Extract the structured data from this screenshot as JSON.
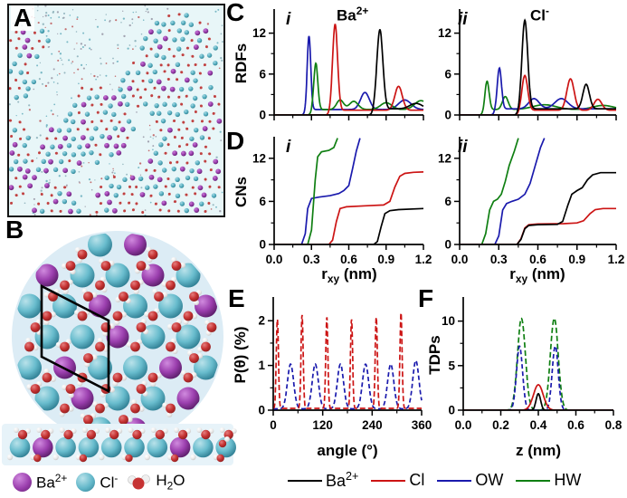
{
  "figure": {
    "panel_labels": {
      "A": "A",
      "B": "B",
      "C": "C",
      "D": "D",
      "E": "E",
      "F": "F"
    }
  },
  "colors": {
    "series_black": "#000000",
    "series_red": "#cc1414",
    "series_blue": "#1a1aad",
    "series_green": "#0f7f12",
    "ba_purple": "#9b3fae",
    "cl_teal": "#5cb4c5",
    "o_red": "#c63333",
    "h_white": "#f2f2f2",
    "panelA_bg": "#e8f6f8",
    "panelB_bg": "#dcecf5",
    "strip_bg": "#e7f3f9"
  },
  "panelB_legend": {
    "ba": {
      "base": "Ba",
      "sup": "2+"
    },
    "cl": {
      "base": "Cl",
      "sup": "-"
    },
    "water": {
      "base": "H",
      "sub": "2",
      "post": "O"
    }
  },
  "bottom_legend": {
    "items": [
      {
        "base": "Ba",
        "sup": "2+",
        "color": "black"
      },
      {
        "base": "Cl",
        "sup": "",
        "color": "red"
      },
      {
        "base": "OW",
        "sup": "",
        "color": "blue"
      },
      {
        "base": "HW",
        "sup": "",
        "color": "green"
      }
    ]
  },
  "chart_data": [
    {
      "id": "C-i",
      "panel": "C",
      "sub": "i",
      "type": "line",
      "annotation": {
        "base": "Ba",
        "sup": "2+"
      },
      "ylabel": "RDFs",
      "xlim": [
        0,
        1.2
      ],
      "ylim": [
        0,
        15
      ],
      "yticks": [
        {
          "v": 0,
          "t": "0"
        },
        {
          "v": 6,
          "t": "6"
        },
        {
          "v": 12,
          "t": "12"
        }
      ],
      "xticks": [
        {
          "v": 0.0
        },
        {
          "v": 0.3
        },
        {
          "v": 0.6
        },
        {
          "v": 0.9
        },
        {
          "v": 1.2
        }
      ],
      "series": [
        {
          "name": "OW",
          "color": "blue",
          "model": "peaks",
          "baseline": 0.8,
          "onset": 0.25,
          "peaks": [
            [
              0.28,
              10.8,
              0.014
            ],
            [
              0.73,
              2.5,
              0.035
            ],
            [
              1.05,
              1.4,
              0.05
            ]
          ]
        },
        {
          "name": "HW",
          "color": "green",
          "model": "peaks",
          "baseline": 0.8,
          "onset": 0.3,
          "peaks": [
            [
              0.335,
              6.8,
              0.016
            ],
            [
              0.53,
              1.4,
              0.028
            ],
            [
              0.64,
              1.2,
              0.035
            ],
            [
              0.9,
              1.0,
              0.045
            ],
            [
              1.18,
              1.3,
              0.05
            ]
          ]
        },
        {
          "name": "Cl",
          "color": "red",
          "model": "peaks",
          "baseline": 0.7,
          "onset": 0.45,
          "peaks": [
            [
              0.49,
              12.6,
              0.02
            ],
            [
              1.0,
              3.5,
              0.03
            ]
          ]
        },
        {
          "name": "Ba2+",
          "color": "black",
          "model": "peaks",
          "baseline": 0.9,
          "onset": 0.8,
          "peaks": [
            [
              0.85,
              11.6,
              0.024
            ],
            [
              1.14,
              0.8,
              0.05
            ]
          ]
        }
      ]
    },
    {
      "id": "C-ii",
      "panel": "C",
      "sub": "ii",
      "type": "line",
      "annotation": {
        "base": "Cl",
        "sup": "-"
      },
      "ylabel": "RDFs",
      "xlim": [
        0,
        1.2
      ],
      "ylim": [
        0,
        15
      ],
      "yticks": [
        {
          "v": 0,
          "t": "0"
        },
        {
          "v": 6,
          "t": "6"
        },
        {
          "v": 12,
          "t": "12"
        }
      ],
      "xticks": [
        {
          "v": 0.0
        },
        {
          "v": 0.3
        },
        {
          "v": 0.6
        },
        {
          "v": 0.9
        },
        {
          "v": 1.2
        }
      ],
      "series": [
        {
          "name": "HW",
          "color": "green",
          "model": "peaks",
          "baseline": 0.8,
          "onset": 0.19,
          "peaks": [
            [
              0.21,
              4.2,
              0.016
            ],
            [
              0.35,
              1.9,
              0.022
            ],
            [
              0.65,
              0.7,
              0.09
            ],
            [
              1.1,
              0.6,
              0.08
            ]
          ]
        },
        {
          "name": "OW",
          "color": "blue",
          "model": "peaks",
          "baseline": 0.9,
          "onset": 0.27,
          "peaks": [
            [
              0.305,
              6.0,
              0.016
            ],
            [
              0.57,
              1.5,
              0.04
            ],
            [
              0.78,
              1.5,
              0.05
            ]
          ]
        },
        {
          "name": "Cl",
          "color": "red",
          "model": "peaks",
          "baseline": 0.7,
          "onset": 0.46,
          "peaks": [
            [
              0.5,
              5.1,
              0.022
            ],
            [
              0.85,
              4.6,
              0.028
            ],
            [
              1.06,
              1.6,
              0.03
            ]
          ]
        },
        {
          "name": "Ba2+",
          "color": "black",
          "model": "peaks",
          "baseline": 0.9,
          "onset": 0.46,
          "peaks": [
            [
              0.5,
              13.0,
              0.022
            ],
            [
              0.97,
              3.6,
              0.025
            ]
          ]
        }
      ]
    },
    {
      "id": "D-i",
      "panel": "D",
      "sub": "i",
      "type": "line",
      "ylabel": "CNs",
      "xlabel": {
        "pre": "r",
        "sub": "xy",
        "post": " (nm)"
      },
      "xlim": [
        0,
        1.2
      ],
      "ylim": [
        0,
        14.5
      ],
      "yticks": [
        {
          "v": 0,
          "t": "0"
        },
        {
          "v": 6,
          "t": "6"
        },
        {
          "v": 12,
          "t": "12"
        }
      ],
      "xticks": [
        {
          "v": 0.0,
          "t": "0.0"
        },
        {
          "v": 0.3,
          "t": "0.3"
        },
        {
          "v": 0.6,
          "t": "0.6"
        },
        {
          "v": 0.9,
          "t": "0.9"
        },
        {
          "v": 1.2,
          "t": "1.2"
        }
      ],
      "series": [
        {
          "name": "OW",
          "color": "blue",
          "model": "points",
          "points": [
            [
              0,
              0
            ],
            [
              0.22,
              0
            ],
            [
              0.25,
              1.5
            ],
            [
              0.27,
              5.0
            ],
            [
              0.3,
              6.4
            ],
            [
              0.36,
              6.6
            ],
            [
              0.45,
              6.8
            ],
            [
              0.52,
              7.1
            ],
            [
              0.56,
              7.5
            ],
            [
              0.6,
              8.2
            ],
            [
              0.63,
              10.5
            ],
            [
              0.66,
              13.0
            ],
            [
              0.69,
              14.8
            ]
          ]
        },
        {
          "name": "HW",
          "color": "green",
          "model": "points",
          "points": [
            [
              0,
              0
            ],
            [
              0.27,
              0
            ],
            [
              0.3,
              2.0
            ],
            [
              0.33,
              9.0
            ],
            [
              0.35,
              12.2
            ],
            [
              0.38,
              12.9
            ],
            [
              0.44,
              13.1
            ],
            [
              0.48,
              13.5
            ],
            [
              0.51,
              14.8
            ]
          ]
        },
        {
          "name": "Cl",
          "color": "red",
          "model": "points",
          "points": [
            [
              0,
              0
            ],
            [
              0.44,
              0
            ],
            [
              0.47,
              0.6
            ],
            [
              0.5,
              3.2
            ],
            [
              0.53,
              5.0
            ],
            [
              0.58,
              5.25
            ],
            [
              0.75,
              5.4
            ],
            [
              0.88,
              5.5
            ],
            [
              0.93,
              6.0
            ],
            [
              0.97,
              8.0
            ],
            [
              1.01,
              9.5
            ],
            [
              1.05,
              9.9
            ],
            [
              1.12,
              10.05
            ],
            [
              1.2,
              10.1
            ]
          ]
        },
        {
          "name": "Ba2+",
          "color": "black",
          "model": "points",
          "points": [
            [
              0,
              0
            ],
            [
              0.8,
              0
            ],
            [
              0.83,
              0.4
            ],
            [
              0.86,
              2.5
            ],
            [
              0.89,
              4.3
            ],
            [
              0.93,
              4.7
            ],
            [
              1.0,
              4.85
            ],
            [
              1.2,
              5.0
            ]
          ]
        }
      ]
    },
    {
      "id": "D-ii",
      "panel": "D",
      "sub": "ii",
      "type": "line",
      "ylabel": "CNs",
      "xlabel": {
        "pre": "r",
        "sub": "xy",
        "post": " (nm)"
      },
      "xlim": [
        0,
        1.2
      ],
      "ylim": [
        0,
        14.5
      ],
      "yticks": [
        {
          "v": 0,
          "t": "0"
        },
        {
          "v": 6,
          "t": "6"
        },
        {
          "v": 12,
          "t": "12"
        }
      ],
      "xticks": [
        {
          "v": 0.0,
          "t": "0.0"
        },
        {
          "v": 0.3,
          "t": "0.3"
        },
        {
          "v": 0.6,
          "t": "0.6"
        },
        {
          "v": 0.9,
          "t": "0.9"
        },
        {
          "v": 1.2,
          "t": "1.2"
        }
      ],
      "series": [
        {
          "name": "HW",
          "color": "green",
          "model": "points",
          "points": [
            [
              0,
              0
            ],
            [
              0.17,
              0
            ],
            [
              0.2,
              1.5
            ],
            [
              0.23,
              4.8
            ],
            [
              0.26,
              6.0
            ],
            [
              0.29,
              6.3
            ],
            [
              0.32,
              7.0
            ],
            [
              0.35,
              8.8
            ],
            [
              0.38,
              11.0
            ],
            [
              0.42,
              13.0
            ],
            [
              0.45,
              14.8
            ]
          ]
        },
        {
          "name": "OW",
          "color": "blue",
          "model": "points",
          "points": [
            [
              0,
              0
            ],
            [
              0.27,
              0
            ],
            [
              0.3,
              1.2
            ],
            [
              0.33,
              4.8
            ],
            [
              0.36,
              5.7
            ],
            [
              0.4,
              6.0
            ],
            [
              0.45,
              6.3
            ],
            [
              0.5,
              7.0
            ],
            [
              0.54,
              8.5
            ],
            [
              0.58,
              11.0
            ],
            [
              0.62,
              13.5
            ],
            [
              0.65,
              14.8
            ]
          ]
        },
        {
          "name": "Cl",
          "color": "red",
          "model": "points",
          "points": [
            [
              0,
              0
            ],
            [
              0.44,
              0
            ],
            [
              0.47,
              0.8
            ],
            [
              0.5,
              2.3
            ],
            [
              0.53,
              2.75
            ],
            [
              0.6,
              2.85
            ],
            [
              0.8,
              2.9
            ],
            [
              0.9,
              3.0
            ],
            [
              0.95,
              3.3
            ],
            [
              1.0,
              4.3
            ],
            [
              1.04,
              4.85
            ],
            [
              1.1,
              5.0
            ],
            [
              1.2,
              5.0
            ]
          ]
        },
        {
          "name": "Ba2+",
          "color": "black",
          "model": "points",
          "points": [
            [
              0,
              0
            ],
            [
              0.44,
              0
            ],
            [
              0.47,
              0.7
            ],
            [
              0.5,
              2.2
            ],
            [
              0.53,
              2.65
            ],
            [
              0.6,
              2.75
            ],
            [
              0.75,
              2.8
            ],
            [
              0.79,
              3.2
            ],
            [
              0.83,
              5.5
            ],
            [
              0.86,
              7.0
            ],
            [
              0.9,
              7.5
            ],
            [
              0.94,
              7.9
            ],
            [
              0.98,
              9.0
            ],
            [
              1.02,
              9.7
            ],
            [
              1.08,
              10.0
            ],
            [
              1.2,
              10.0
            ]
          ]
        }
      ]
    },
    {
      "id": "E",
      "panel": "E",
      "type": "line",
      "ylabel": "P(θ) (%)",
      "xlabel": "angle (°)",
      "xlim": [
        0,
        360
      ],
      "ylim": [
        0,
        2.45
      ],
      "yticks": [
        {
          "v": 0,
          "t": "0"
        },
        {
          "v": 1,
          "t": "1"
        },
        {
          "v": 2,
          "t": "2"
        }
      ],
      "xticks": [
        {
          "v": 0,
          "t": "0"
        },
        {
          "v": 120,
          "t": "120"
        },
        {
          "v": 240,
          "t": "240"
        },
        {
          "v": 360,
          "t": "360"
        }
      ],
      "series": [
        {
          "name": "OW",
          "color": "blue",
          "model": "peaks",
          "baseline": 0.03,
          "onset": -20,
          "dash": "5 3",
          "peaks": [
            [
              42,
              1.0,
              7.5
            ],
            [
              102,
              1.0,
              7.5
            ],
            [
              163,
              1.0,
              7.5
            ],
            [
              224,
              1.0,
              7.5
            ],
            [
              285,
              1.0,
              7.5
            ],
            [
              346,
              1.08,
              7.5
            ]
          ]
        },
        {
          "name": "Cl",
          "color": "red",
          "model": "peaks",
          "baseline": 0.04,
          "onset": -20,
          "dash": "6 3",
          "peaks": [
            [
              10,
              2.0,
              2.6
            ],
            [
              70,
              2.1,
              2.6
            ],
            [
              130,
              2.05,
              2.6
            ],
            [
              190,
              2.0,
              2.6
            ],
            [
              250,
              2.05,
              2.6
            ],
            [
              310,
              2.15,
              2.6
            ]
          ]
        }
      ]
    },
    {
      "id": "F",
      "panel": "F",
      "type": "line",
      "ylabel": "TDPs",
      "xlabel": "z (nm)",
      "xlim": [
        0,
        0.8
      ],
      "ylim": [
        0,
        12.3
      ],
      "yticks": [
        {
          "v": 0,
          "t": "0"
        },
        {
          "v": 5,
          "t": "5"
        },
        {
          "v": 10,
          "t": "10"
        }
      ],
      "xticks": [
        {
          "v": 0.0,
          "t": "0.0"
        },
        {
          "v": 0.2,
          "t": "0.2"
        },
        {
          "v": 0.4,
          "t": "0.4"
        },
        {
          "v": 0.6,
          "t": "0.6"
        },
        {
          "v": 0.8,
          "t": "0.8"
        }
      ],
      "series": [
        {
          "name": "HW",
          "color": "green",
          "model": "peaks",
          "baseline": 0,
          "onset": -1,
          "dash": "6 3",
          "peaks": [
            [
              0.31,
              10.3,
              0.021
            ],
            [
              0.485,
              10.3,
              0.021
            ]
          ]
        },
        {
          "name": "OW",
          "color": "blue",
          "model": "peaks",
          "baseline": 0,
          "onset": -1,
          "dash": "5 3",
          "peaks": [
            [
              0.3,
              7.2,
              0.016
            ],
            [
              0.49,
              7.2,
              0.016
            ]
          ]
        },
        {
          "name": "Cl",
          "color": "red",
          "model": "peaks",
          "baseline": 0,
          "onset": -1,
          "peaks": [
            [
              0.4,
              2.85,
              0.026
            ]
          ]
        },
        {
          "name": "Ba2+",
          "color": "black",
          "model": "peaks",
          "baseline": 0,
          "onset": -1,
          "peaks": [
            [
              0.4,
              1.85,
              0.012
            ]
          ]
        }
      ]
    }
  ]
}
